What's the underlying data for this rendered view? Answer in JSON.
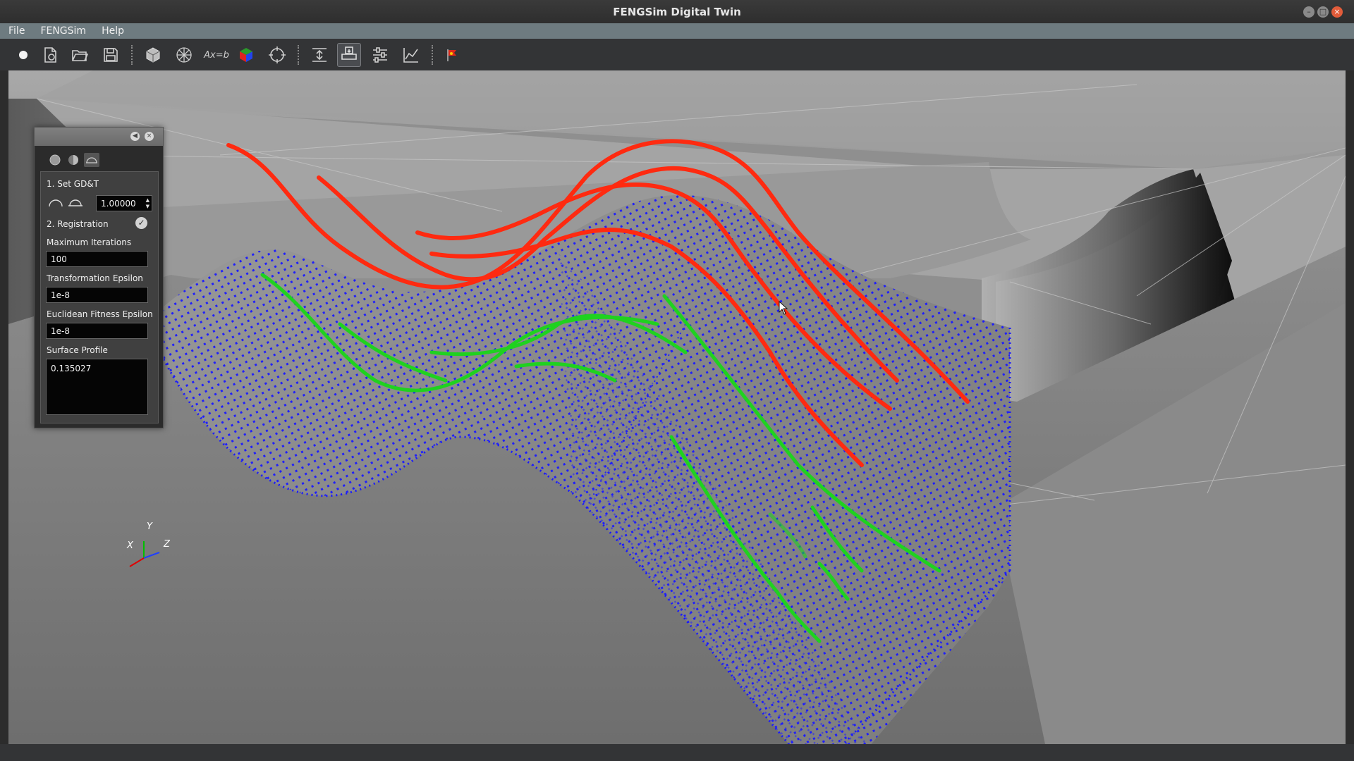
{
  "window": {
    "title": "FENGSim Digital Twin",
    "minimize_glyph": "–",
    "maximize_glyph": "□",
    "close_glyph": "×"
  },
  "menu": [
    "File",
    "FENGSim",
    "Help"
  ],
  "toolbar": {
    "icons": [
      "record-dot-icon",
      "new-document-icon",
      "open-folder-icon",
      "save-icon",
      "solid-cube-icon",
      "wireframe-cube-icon",
      "equation-icon",
      "color-cube-icon",
      "target-icon",
      "level-icon",
      "print-icon",
      "settings-icon",
      "chart-icon",
      "flag-icon"
    ],
    "equation_label": "Ax=b"
  },
  "panel": {
    "section1": "1. Set GD&T",
    "tolerance_value": "1.00000",
    "section2": "2. Registration",
    "max_iter_label": "Maximum Iterations",
    "max_iter_value": "100",
    "trans_eps_label": "Transformation Epsilon",
    "trans_eps_value": "1e-8",
    "fit_eps_label": "Euclidean Fitness Epsilon",
    "fit_eps_value": "1e-8",
    "profile_label": "Surface Profile",
    "profile_value": "0.135027",
    "collapse_glyph": "◀",
    "close_glyph": "×",
    "check_glyph": "✓"
  },
  "axes": {
    "x": "X",
    "y": "Y",
    "z": "Z"
  },
  "colors": {
    "points": "#1a1aff",
    "reference_curves": "#ff2a10",
    "measured_curves": "#1fd21f",
    "surface": "#8c8c8c",
    "background": "#7a7a7a"
  }
}
